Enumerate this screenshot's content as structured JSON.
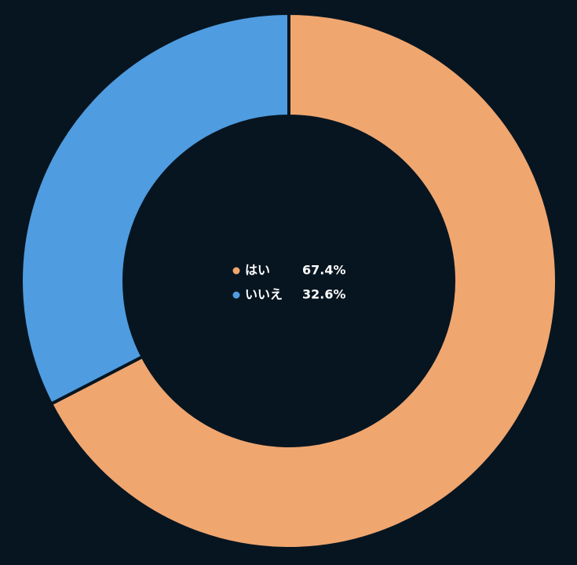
{
  "chart_data": {
    "type": "pie",
    "donut": true,
    "categories": [
      "はい",
      "いいえ"
    ],
    "values": [
      67.4,
      32.6
    ],
    "value_labels": [
      "67.4%",
      "32.6%"
    ],
    "colors": [
      "#f0a66f",
      "#4f9ce0"
    ]
  }
}
